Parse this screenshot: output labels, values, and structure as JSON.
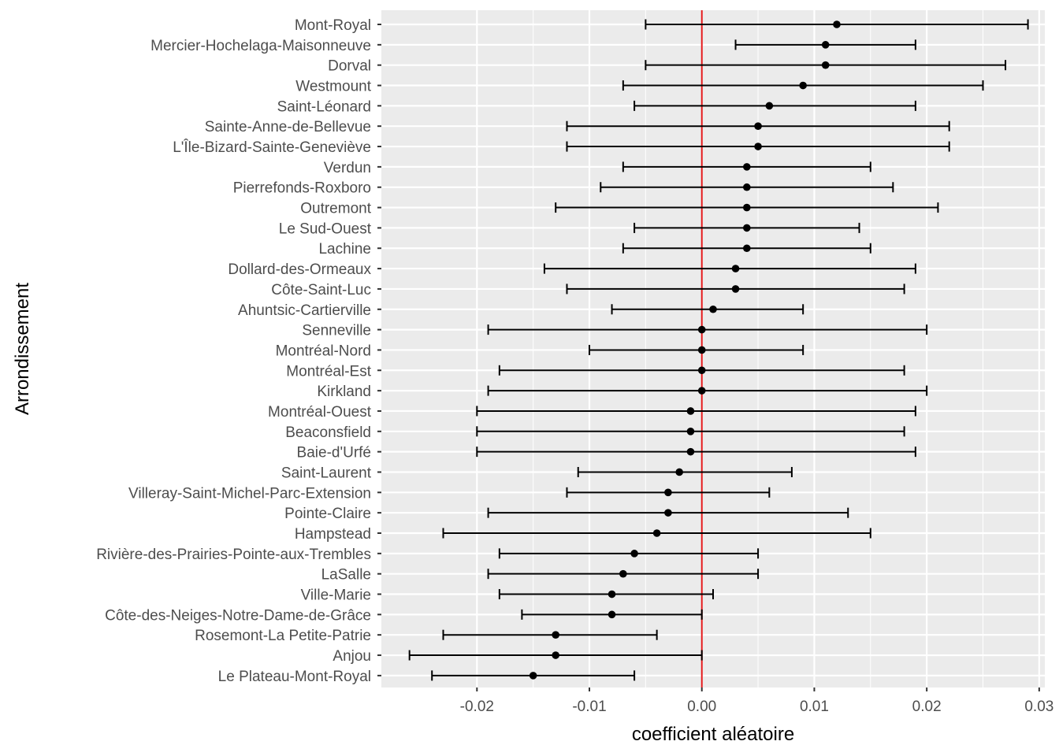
{
  "chart_data": {
    "type": "errorbar",
    "xlabel": "coefficient aléatoire",
    "ylabel": "Arrondissement",
    "xlim": [
      -0.0285,
      0.0305
    ],
    "x_ticks": [
      -0.02,
      -0.01,
      0.0,
      0.01,
      0.02,
      0.03
    ],
    "x_tick_labels": [
      "-0.02",
      "-0.01",
      "0.00",
      "0.01",
      "0.02",
      "0.03"
    ],
    "grid": true,
    "reference_line": {
      "x": 0,
      "color": "#e41a1c"
    },
    "colors": {
      "panel": "#ebebeb",
      "grid": "#ffffff",
      "point": "#000000",
      "reference": "#e41a1c"
    },
    "categories": [
      "Mont-Royal",
      "Mercier-Hochelaga-Maisonneuve",
      "Dorval",
      "Westmount",
      "Saint-Léonard",
      "Sainte-Anne-de-Bellevue",
      "L'Île-Bizard-Sainte-Geneviève",
      "Verdun",
      "Pierrefonds-Roxboro",
      "Outremont",
      "Le Sud-Ouest",
      "Lachine",
      "Dollard-des-Ormeaux",
      "Côte-Saint-Luc",
      "Ahuntsic-Cartierville",
      "Senneville",
      "Montréal-Nord",
      "Montréal-Est",
      "Kirkland",
      "Montréal-Ouest",
      "Beaconsfield",
      "Baie-d'Urfé",
      "Saint-Laurent",
      "Villeray-Saint-Michel-Parc-Extension",
      "Pointe-Claire",
      "Hampstead",
      "Rivière-des-Prairies-Pointe-aux-Trembles",
      "LaSalle",
      "Ville-Marie",
      "Côte-des-Neiges-Notre-Dame-de-Grâce",
      "Rosemont-La Petite-Patrie",
      "Anjou",
      "Le Plateau-Mont-Royal"
    ],
    "estimate": [
      0.012,
      0.011,
      0.011,
      0.009,
      0.006,
      0.005,
      0.005,
      0.004,
      0.004,
      0.004,
      0.004,
      0.004,
      0.003,
      0.003,
      0.001,
      0.0,
      0.0,
      0.0,
      0.0,
      -0.001,
      -0.001,
      -0.001,
      -0.002,
      -0.003,
      -0.003,
      -0.004,
      -0.006,
      -0.007,
      -0.008,
      -0.008,
      -0.013,
      -0.013,
      -0.015
    ],
    "lower": [
      -0.005,
      0.003,
      -0.005,
      -0.007,
      -0.006,
      -0.012,
      -0.012,
      -0.007,
      -0.009,
      -0.013,
      -0.006,
      -0.007,
      -0.014,
      -0.012,
      -0.008,
      -0.019,
      -0.01,
      -0.018,
      -0.019,
      -0.02,
      -0.02,
      -0.02,
      -0.011,
      -0.012,
      -0.019,
      -0.023,
      -0.018,
      -0.019,
      -0.018,
      -0.016,
      -0.023,
      -0.026,
      -0.024
    ],
    "upper": [
      0.029,
      0.019,
      0.027,
      0.025,
      0.019,
      0.022,
      0.022,
      0.015,
      0.017,
      0.021,
      0.014,
      0.015,
      0.019,
      0.018,
      0.009,
      0.02,
      0.009,
      0.018,
      0.02,
      0.019,
      0.018,
      0.019,
      0.008,
      0.006,
      0.013,
      0.015,
      0.005,
      0.005,
      0.001,
      0.0,
      -0.004,
      0.0,
      -0.006
    ]
  }
}
